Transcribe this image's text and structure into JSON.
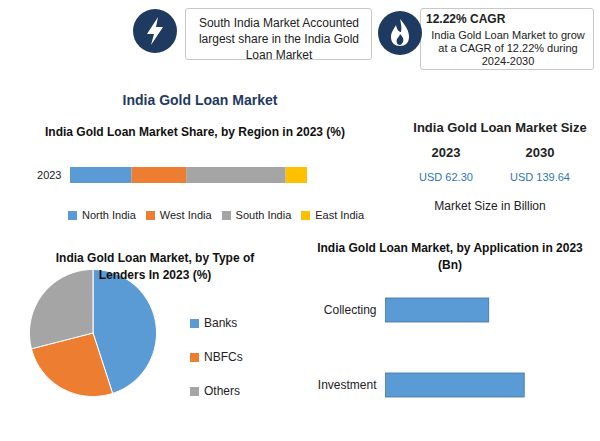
{
  "banners": [
    {
      "text": "South India Market Accounted largest share in the India Gold Loan Market"
    },
    {
      "title": "12.22% CAGR",
      "text": "India Gold Loan Market to grow at a CAGR of 12.22% during 2024-2030"
    }
  ],
  "title": "India Gold Loan Market",
  "market_size": {
    "title": "India Gold Loan Market Size",
    "columns": [
      {
        "year": "2023",
        "value": "USD 62.30"
      },
      {
        "year": "2030",
        "value": "USD 139.64"
      }
    ],
    "note": "Market Size in Billion"
  },
  "chart_data": [
    {
      "type": "bar",
      "title": "India Gold Loan Market Share, by Region in 2023 (%)",
      "orientation": "horizontal",
      "stacked": true,
      "categories": [
        "2023"
      ],
      "series": [
        {
          "name": "North India",
          "color": "#5b9bd5",
          "values": [
            26
          ]
        },
        {
          "name": "West India",
          "color": "#ed7d31",
          "values": [
            23
          ]
        },
        {
          "name": "South India",
          "color": "#a5a5a5",
          "values": [
            42
          ]
        },
        {
          "name": "East India",
          "color": "#ffc000",
          "values": [
            9
          ]
        }
      ],
      "xlim": [
        0,
        100
      ],
      "tick_labels": "y",
      "legend": "bottom"
    },
    {
      "type": "pie",
      "title": "India Gold Loan Market, by Type of Lenders In 2023 (%)",
      "categories": [
        "Banks",
        "NBFCs",
        "Others"
      ],
      "values": [
        45,
        26,
        29
      ],
      "colors": [
        "#5b9bd5",
        "#ed7d31",
        "#a5a5a5"
      ],
      "legend": "right"
    },
    {
      "type": "bar",
      "title": "India Gold Loan Market, by Application in 2023 (Bn)",
      "orientation": "horizontal",
      "categories": [
        "Collecting",
        "Investment"
      ],
      "values": [
        26.6,
        35.7
      ],
      "color": "#5b9bd5",
      "xlim": [
        0,
        50
      ],
      "tick_labels": "y"
    }
  ]
}
